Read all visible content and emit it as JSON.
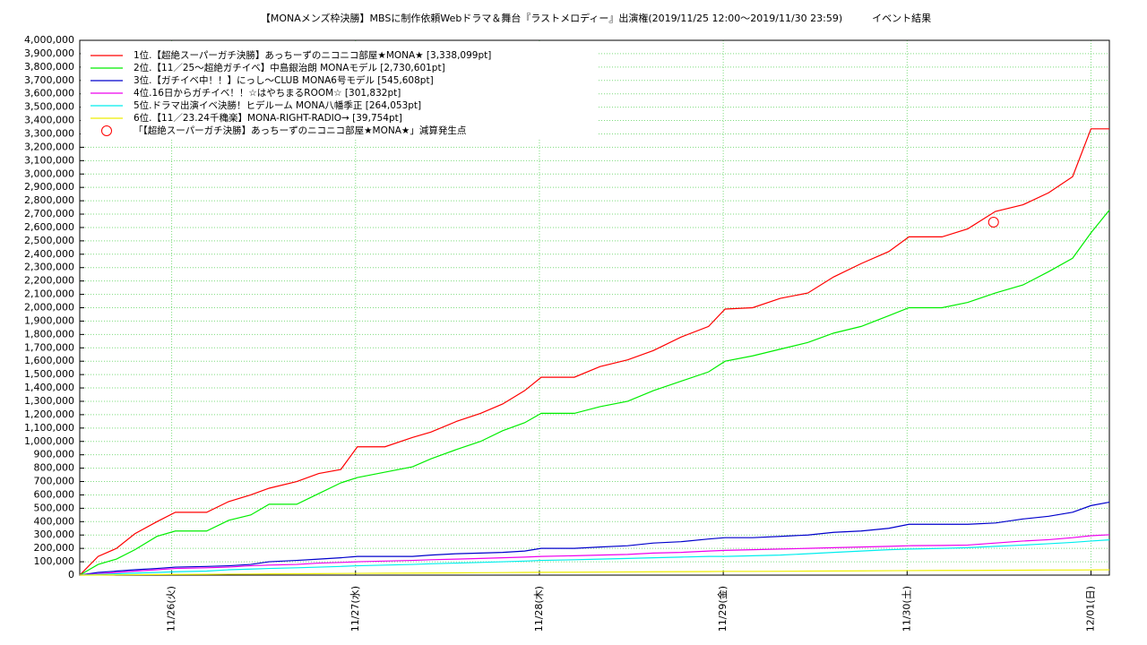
{
  "chart_data": {
    "type": "line",
    "title": "【MONAメンズ枠決勝】MBSに制作依頼Webドラマ＆舞台『ラストメロディー』出演権(2019/11/25 12:00〜2019/11/30 23:59)　　　イベント結果",
    "x": [
      25.5,
      25.6,
      25.7,
      25.8,
      25.92,
      26.02,
      26.19,
      26.31,
      26.43,
      26.53,
      26.68,
      26.8,
      26.92,
      27.01,
      27.16,
      27.31,
      27.41,
      27.55,
      27.68,
      27.8,
      27.92,
      28.01,
      28.19,
      28.33,
      28.48,
      28.62,
      28.77,
      28.92,
      29.01,
      29.16,
      29.31,
      29.46,
      29.6,
      29.75,
      29.9,
      30.01,
      30.19,
      30.33,
      30.48,
      30.63,
      30.77,
      30.9,
      31.0,
      31.1
    ],
    "series": [
      {
        "name": "1位.【超絶スーパーガチ決勝】あっちーずのニコニコ部屋★MONA★ [3,338,099pt]",
        "color": "#ff0000",
        "values": [
          0,
          140000,
          200000,
          310000,
          400000,
          470000,
          470000,
          550000,
          600000,
          650000,
          700000,
          760000,
          790000,
          960000,
          960000,
          1030000,
          1070000,
          1150000,
          1210000,
          1280000,
          1380000,
          1480000,
          1480000,
          1560000,
          1610000,
          1680000,
          1780000,
          1860000,
          1990000,
          2000000,
          2070000,
          2110000,
          2230000,
          2330000,
          2420000,
          2530000,
          2530000,
          2590000,
          2720000,
          2770000,
          2860000,
          2980000,
          3338099,
          3338099
        ]
      },
      {
        "name": "2位.【11／25〜超絶ガチイベ】中島銀治朗  MONAモデル [2,730,601pt]",
        "color": "#00ee00",
        "values": [
          0,
          80000,
          120000,
          190000,
          290000,
          330000,
          330000,
          410000,
          450000,
          530000,
          530000,
          610000,
          690000,
          730000,
          770000,
          810000,
          870000,
          940000,
          1000000,
          1080000,
          1140000,
          1210000,
          1210000,
          1260000,
          1300000,
          1380000,
          1450000,
          1520000,
          1600000,
          1640000,
          1690000,
          1740000,
          1810000,
          1860000,
          1940000,
          2000000,
          2000000,
          2040000,
          2110000,
          2170000,
          2270000,
          2370000,
          2560000,
          2730601
        ]
      },
      {
        "name": "3位.【ガチイベ中！！】にっし〜CLUB MONA6号モデル [545,608pt]",
        "color": "#0000cc",
        "values": [
          0,
          20000,
          30000,
          40000,
          50000,
          60000,
          65000,
          70000,
          80000,
          100000,
          110000,
          120000,
          130000,
          140000,
          140000,
          140000,
          150000,
          160000,
          165000,
          170000,
          180000,
          200000,
          200000,
          210000,
          220000,
          240000,
          250000,
          270000,
          280000,
          280000,
          290000,
          300000,
          320000,
          330000,
          350000,
          380000,
          380000,
          380000,
          390000,
          420000,
          440000,
          470000,
          520000,
          545608
        ]
      },
      {
        "name": "4位.16日からガチイベ！！☆はやちまるROOM☆ [301,832pt]",
        "color": "#ee00ee",
        "values": [
          0,
          10000,
          20000,
          30000,
          40000,
          50000,
          55000,
          60000,
          70000,
          75000,
          80000,
          90000,
          95000,
          100000,
          105000,
          110000,
          115000,
          120000,
          125000,
          130000,
          135000,
          140000,
          145000,
          150000,
          155000,
          165000,
          170000,
          180000,
          185000,
          190000,
          195000,
          200000,
          205000,
          210000,
          215000,
          220000,
          222000,
          225000,
          240000,
          255000,
          265000,
          280000,
          295000,
          301832
        ]
      },
      {
        "name": "5位.ドラマ出演イベ決勝！ヒデルーム MONA八幡季正 [264,053pt]",
        "color": "#00eeee",
        "values": [
          0,
          5000,
          10000,
          15000,
          20000,
          25000,
          30000,
          40000,
          45000,
          50000,
          55000,
          60000,
          65000,
          70000,
          75000,
          80000,
          85000,
          90000,
          95000,
          100000,
          105000,
          110000,
          115000,
          120000,
          125000,
          130000,
          135000,
          140000,
          140000,
          145000,
          150000,
          160000,
          170000,
          180000,
          190000,
          195000,
          200000,
          205000,
          215000,
          225000,
          235000,
          245000,
          255000,
          264053
        ]
      },
      {
        "name": "6位.【11／23.24千穐楽】MONA-RIGHT-RADIO→ [39,754pt]",
        "color": "#eeee00",
        "values": [
          0,
          1000,
          2000,
          3000,
          4000,
          5000,
          6000,
          7000,
          8000,
          9000,
          10000,
          11000,
          12000,
          13000,
          14000,
          15000,
          16000,
          17000,
          18000,
          19000,
          20000,
          21000,
          22000,
          23000,
          24000,
          25000,
          26000,
          27000,
          28000,
          28000,
          29000,
          30000,
          31000,
          32000,
          33000,
          34000,
          35000,
          35000,
          36000,
          37000,
          38000,
          38000,
          39000,
          39754
        ]
      }
    ],
    "markers": [
      {
        "name": "「【超絶スーパーガチ決勝】あっちーずのニコニコ部屋★MONA★」減算発生点",
        "color": "#ff0000",
        "x": 30.47,
        "y": 2640000
      }
    ],
    "xlim": [
      25.5,
      31.1
    ],
    "xticks": [
      {
        "value": 26,
        "label": "11/26(火)"
      },
      {
        "value": 27,
        "label": "11/27(水)"
      },
      {
        "value": 28,
        "label": "11/28(木)"
      },
      {
        "value": 29,
        "label": "11/29(金)"
      },
      {
        "value": 30,
        "label": "11/30(土)"
      },
      {
        "value": 31,
        "label": "12/01(日)"
      }
    ],
    "ylim": [
      0,
      4000000
    ],
    "yticks": [
      0,
      {
        "value": 100000,
        "label": "100,000"
      },
      {
        "value": 200000,
        "label": "200,000"
      },
      {
        "value": 300000,
        "label": "300,000"
      },
      {
        "value": 400000,
        "label": "400,000"
      },
      {
        "value": 500000,
        "label": "500,000"
      },
      {
        "value": 600000,
        "label": "600,000"
      },
      {
        "value": 700000,
        "label": "700,000"
      },
      {
        "value": 800000,
        "label": "800,000"
      },
      {
        "value": 900000,
        "label": "900,000"
      },
      {
        "value": 1000000,
        "label": "1,000,000"
      },
      {
        "value": 1100000,
        "label": "1,100,000"
      },
      {
        "value": 1200000,
        "label": "1,200,000"
      },
      {
        "value": 1300000,
        "label": "1,300,000"
      },
      {
        "value": 1400000,
        "label": "1,400,000"
      },
      {
        "value": 1500000,
        "label": "1,500,000"
      },
      {
        "value": 1600000,
        "label": "1,600,000"
      },
      {
        "value": 1700000,
        "label": "1,700,000"
      },
      {
        "value": 1800000,
        "label": "1,800,000"
      },
      {
        "value": 1900000,
        "label": "1,900,000"
      },
      {
        "value": 2000000,
        "label": "2,000,000"
      },
      {
        "value": 2100000,
        "label": "2,100,000"
      },
      {
        "value": 2200000,
        "label": "2,200,000"
      },
      {
        "value": 2300000,
        "label": "2,300,000"
      },
      {
        "value": 2400000,
        "label": "2,400,000"
      },
      {
        "value": 2500000,
        "label": "2,500,000"
      },
      {
        "value": 2600000,
        "label": "2,600,000"
      },
      {
        "value": 2700000,
        "label": "2,700,000"
      },
      {
        "value": 2800000,
        "label": "2,800,000"
      },
      {
        "value": 2900000,
        "label": "2,900,000"
      },
      {
        "value": 3000000,
        "label": "3,000,000"
      },
      {
        "value": 3100000,
        "label": "3,100,000"
      },
      {
        "value": 3200000,
        "label": "3,200,000"
      },
      {
        "value": 3300000,
        "label": "3,300,000"
      },
      {
        "value": 3400000,
        "label": "3,400,000"
      },
      {
        "value": 3500000,
        "label": "3,500,000"
      },
      {
        "value": 3600000,
        "label": "3,600,000"
      },
      {
        "value": 3700000,
        "label": "3,700,000"
      },
      {
        "value": 3800000,
        "label": "3,800,000"
      },
      {
        "value": 3900000,
        "label": "3,900,000"
      },
      {
        "value": 4000000,
        "label": "4,000,000"
      }
    ],
    "grid": true,
    "legend": "upper-left"
  }
}
